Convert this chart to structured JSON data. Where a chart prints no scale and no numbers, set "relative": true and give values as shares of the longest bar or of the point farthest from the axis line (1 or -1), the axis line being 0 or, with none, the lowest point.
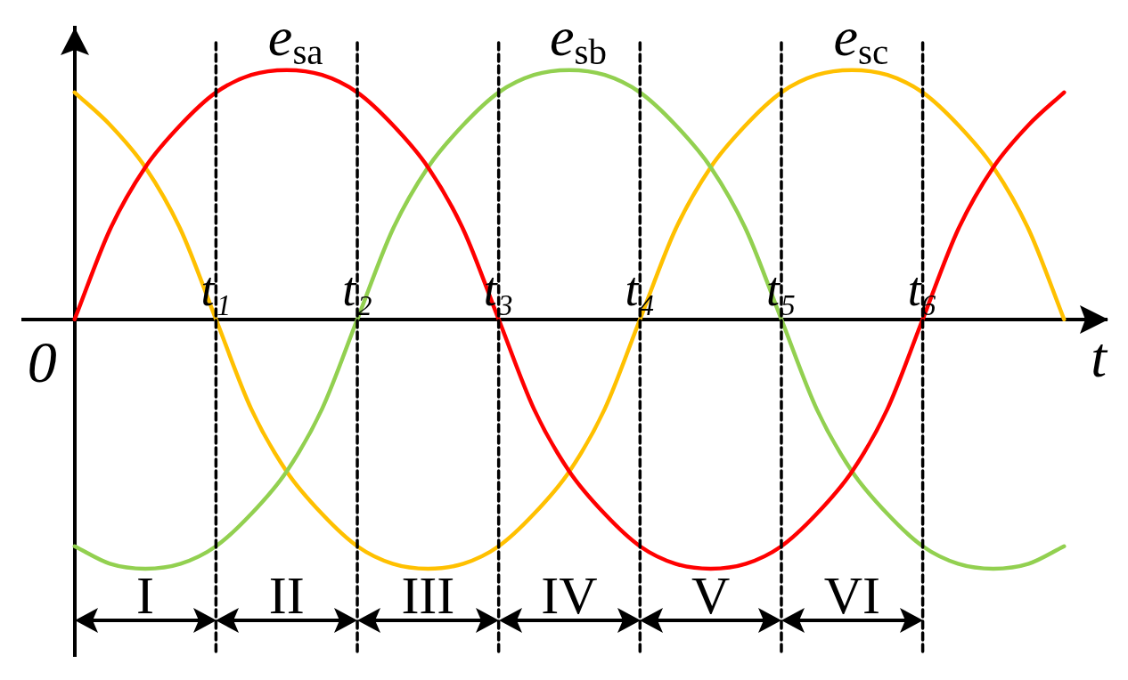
{
  "chart_data": {
    "type": "line",
    "relative": true,
    "marker": "none",
    "tick_labels": "x",
    "categories": [
      null,
      null,
      null,
      null,
      "t₁",
      null,
      null,
      null,
      "t₂",
      null,
      null,
      null,
      "t₃",
      null,
      null,
      null,
      "t₄",
      null,
      null,
      null,
      "t₅",
      null,
      null,
      null,
      "t₆",
      null,
      null,
      null,
      null
    ],
    "xlabel": "t",
    "series": [
      {
        "name": "e$_{sa}$",
        "color": "#ff0000",
        "values": [
          0,
          0.36,
          0.61,
          0.78,
          0.91,
          0.98,
          1,
          0.98,
          0.91,
          0.78,
          0.61,
          0.36,
          0,
          -0.36,
          -0.61,
          -0.78,
          -0.91,
          -0.98,
          -1,
          -0.98,
          -0.91,
          -0.78,
          -0.61,
          -0.36,
          0,
          0.36,
          0.61,
          0.78,
          0.91
        ]
      },
      {
        "name": "e$_{sb}$",
        "color": "#92d050",
        "values": [
          -0.91,
          -0.98,
          -1,
          -0.98,
          -0.91,
          -0.78,
          -0.61,
          -0.36,
          0,
          0.36,
          0.61,
          0.78,
          0.91,
          0.98,
          1,
          0.98,
          0.91,
          0.78,
          0.61,
          0.36,
          0,
          -0.36,
          -0.61,
          -0.78,
          -0.91,
          -0.98,
          -1,
          -0.98,
          -0.91
        ]
      },
      {
        "name": "e$_{sc}$",
        "color": "#ffc000",
        "values": [
          0.91,
          0.78,
          0.61,
          0.36,
          0,
          -0.36,
          -0.61,
          -0.78,
          -0.91,
          -0.98,
          -1,
          -0.98,
          -0.91,
          -0.78,
          -0.61,
          -0.36,
          0,
          0.36,
          0.61,
          0.78,
          0.91,
          0.98,
          1,
          0.98,
          0.91,
          0.78,
          0.61,
          0.36,
          0
        ]
      }
    ],
    "ref_lines": [
      {
        "axis": "x",
        "value": "t₁",
        "color": "#000000",
        "line_style": "dashed"
      },
      {
        "axis": "x",
        "value": "t₂",
        "color": "#000000",
        "line_style": "dashed"
      },
      {
        "axis": "x",
        "value": "t₃",
        "color": "#000000",
        "line_style": "dashed"
      },
      {
        "axis": "x",
        "value": "t₄",
        "color": "#000000",
        "line_style": "dashed"
      },
      {
        "axis": "x",
        "value": "t₅",
        "color": "#000000",
        "line_style": "dashed"
      },
      {
        "axis": "x",
        "value": "t₆",
        "color": "#000000",
        "line_style": "dashed"
      }
    ],
    "annotations": [
      "0",
      "I",
      "II",
      "III",
      "IV",
      "V",
      "VI"
    ]
  }
}
